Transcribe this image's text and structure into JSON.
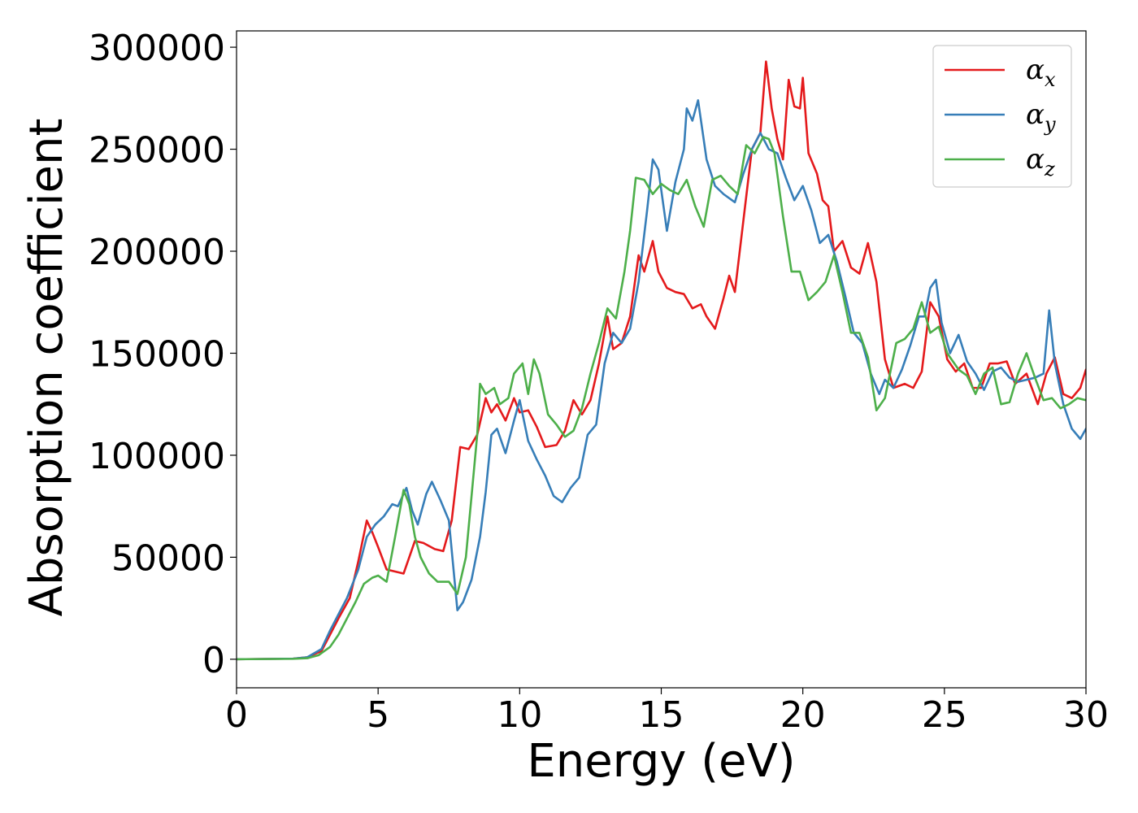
{
  "chart_data": {
    "type": "line",
    "xlabel": "Energy (eV)",
    "ylabel": "Absorption coefficient",
    "xlim": [
      0,
      30
    ],
    "ylim": [
      -14000,
      308000
    ],
    "x_ticks": [
      0,
      5,
      10,
      15,
      20,
      25,
      30
    ],
    "y_ticks": [
      0,
      50000,
      100000,
      150000,
      200000,
      250000,
      300000
    ],
    "x_tick_labels": [
      "0",
      "5",
      "10",
      "15",
      "20",
      "25",
      "30"
    ],
    "y_tick_labels": [
      "0",
      "50000",
      "100000",
      "150000",
      "200000",
      "250000",
      "300000"
    ],
    "grid": false,
    "legend_position": "top-right",
    "series": [
      {
        "name": "αx",
        "legend_symbol": "α",
        "legend_subscript": "x",
        "color": "#e41a1c",
        "points": [
          [
            0,
            0
          ],
          [
            2.0,
            300
          ],
          [
            2.5,
            1000
          ],
          [
            3.0,
            4000
          ],
          [
            3.3,
            12000
          ],
          [
            3.6,
            20000
          ],
          [
            4.0,
            30000
          ],
          [
            4.3,
            48000
          ],
          [
            4.6,
            68000
          ],
          [
            4.8,
            62000
          ],
          [
            5.0,
            55000
          ],
          [
            5.3,
            44000
          ],
          [
            5.6,
            43000
          ],
          [
            5.9,
            42000
          ],
          [
            6.1,
            50000
          ],
          [
            6.3,
            58000
          ],
          [
            6.6,
            57000
          ],
          [
            7.0,
            54000
          ],
          [
            7.3,
            53000
          ],
          [
            7.6,
            68000
          ],
          [
            7.9,
            104000
          ],
          [
            8.2,
            103000
          ],
          [
            8.5,
            110000
          ],
          [
            8.8,
            128000
          ],
          [
            9.0,
            121000
          ],
          [
            9.2,
            125000
          ],
          [
            9.5,
            117000
          ],
          [
            9.8,
            128000
          ],
          [
            10.0,
            121000
          ],
          [
            10.3,
            122000
          ],
          [
            10.6,
            114000
          ],
          [
            10.9,
            104000
          ],
          [
            11.3,
            105000
          ],
          [
            11.6,
            112000
          ],
          [
            11.9,
            127000
          ],
          [
            12.2,
            120000
          ],
          [
            12.5,
            127000
          ],
          [
            12.8,
            145000
          ],
          [
            13.1,
            168000
          ],
          [
            13.3,
            152000
          ],
          [
            13.6,
            155000
          ],
          [
            13.9,
            168000
          ],
          [
            14.2,
            198000
          ],
          [
            14.4,
            190000
          ],
          [
            14.7,
            205000
          ],
          [
            14.9,
            190000
          ],
          [
            15.2,
            182000
          ],
          [
            15.5,
            180000
          ],
          [
            15.8,
            179000
          ],
          [
            16.1,
            172000
          ],
          [
            16.4,
            174000
          ],
          [
            16.6,
            168000
          ],
          [
            16.9,
            162000
          ],
          [
            17.2,
            177000
          ],
          [
            17.4,
            188000
          ],
          [
            17.6,
            180000
          ],
          [
            17.9,
            215000
          ],
          [
            18.2,
            250000
          ],
          [
            18.5,
            258000
          ],
          [
            18.7,
            293000
          ],
          [
            18.9,
            270000
          ],
          [
            19.1,
            255000
          ],
          [
            19.3,
            245000
          ],
          [
            19.5,
            284000
          ],
          [
            19.7,
            271000
          ],
          [
            19.9,
            270000
          ],
          [
            20.0,
            285000
          ],
          [
            20.2,
            248000
          ],
          [
            20.5,
            238000
          ],
          [
            20.7,
            225000
          ],
          [
            20.9,
            222000
          ],
          [
            21.1,
            200000
          ],
          [
            21.4,
            205000
          ],
          [
            21.7,
            192000
          ],
          [
            22.0,
            189000
          ],
          [
            22.3,
            204000
          ],
          [
            22.6,
            185000
          ],
          [
            22.9,
            147000
          ],
          [
            23.2,
            133000
          ],
          [
            23.6,
            135000
          ],
          [
            23.9,
            133000
          ],
          [
            24.2,
            141000
          ],
          [
            24.5,
            175000
          ],
          [
            24.8,
            168000
          ],
          [
            25.1,
            147000
          ],
          [
            25.4,
            141000
          ],
          [
            25.7,
            145000
          ],
          [
            26.0,
            133000
          ],
          [
            26.3,
            133000
          ],
          [
            26.6,
            145000
          ],
          [
            26.9,
            145000
          ],
          [
            27.2,
            146000
          ],
          [
            27.5,
            135000
          ],
          [
            27.9,
            140000
          ],
          [
            28.3,
            125000
          ],
          [
            28.6,
            140000
          ],
          [
            28.9,
            148000
          ],
          [
            29.2,
            130000
          ],
          [
            29.5,
            128000
          ],
          [
            29.8,
            133000
          ],
          [
            30.0,
            142000
          ]
        ]
      },
      {
        "name": "αy",
        "legend_symbol": "α",
        "legend_subscript": "y",
        "color": "#377eb8",
        "points": [
          [
            0,
            0
          ],
          [
            2.0,
            300
          ],
          [
            2.5,
            1000
          ],
          [
            3.0,
            5000
          ],
          [
            3.3,
            14000
          ],
          [
            3.6,
            22000
          ],
          [
            3.9,
            30000
          ],
          [
            4.3,
            44000
          ],
          [
            4.6,
            60000
          ],
          [
            4.9,
            66000
          ],
          [
            5.2,
            70000
          ],
          [
            5.5,
            76000
          ],
          [
            5.7,
            75000
          ],
          [
            6.0,
            84000
          ],
          [
            6.2,
            73000
          ],
          [
            6.4,
            66000
          ],
          [
            6.7,
            81000
          ],
          [
            6.9,
            87000
          ],
          [
            7.2,
            78000
          ],
          [
            7.5,
            68000
          ],
          [
            7.8,
            24000
          ],
          [
            8.0,
            28000
          ],
          [
            8.3,
            39000
          ],
          [
            8.6,
            60000
          ],
          [
            8.8,
            82000
          ],
          [
            9.0,
            110000
          ],
          [
            9.2,
            113000
          ],
          [
            9.5,
            101000
          ],
          [
            9.8,
            117000
          ],
          [
            10.0,
            127000
          ],
          [
            10.3,
            107000
          ],
          [
            10.6,
            98000
          ],
          [
            10.9,
            90000
          ],
          [
            11.2,
            80000
          ],
          [
            11.5,
            77000
          ],
          [
            11.8,
            84000
          ],
          [
            12.1,
            89000
          ],
          [
            12.4,
            110000
          ],
          [
            12.7,
            115000
          ],
          [
            13.0,
            145000
          ],
          [
            13.3,
            160000
          ],
          [
            13.6,
            155000
          ],
          [
            13.9,
            162000
          ],
          [
            14.2,
            185000
          ],
          [
            14.5,
            220000
          ],
          [
            14.7,
            245000
          ],
          [
            14.9,
            240000
          ],
          [
            15.2,
            210000
          ],
          [
            15.5,
            234000
          ],
          [
            15.8,
            250000
          ],
          [
            15.9,
            270000
          ],
          [
            16.1,
            264000
          ],
          [
            16.3,
            274000
          ],
          [
            16.6,
            245000
          ],
          [
            16.9,
            232000
          ],
          [
            17.2,
            228000
          ],
          [
            17.6,
            224000
          ],
          [
            17.9,
            238000
          ],
          [
            18.2,
            250000
          ],
          [
            18.5,
            258000
          ],
          [
            18.8,
            250000
          ],
          [
            19.1,
            248000
          ],
          [
            19.4,
            236000
          ],
          [
            19.7,
            225000
          ],
          [
            20.0,
            232000
          ],
          [
            20.3,
            220000
          ],
          [
            20.6,
            204000
          ],
          [
            20.9,
            208000
          ],
          [
            21.2,
            195000
          ],
          [
            21.5,
            178000
          ],
          [
            21.8,
            160000
          ],
          [
            22.1,
            155000
          ],
          [
            22.4,
            140000
          ],
          [
            22.7,
            130000
          ],
          [
            22.9,
            137000
          ],
          [
            23.2,
            133000
          ],
          [
            23.5,
            142000
          ],
          [
            23.8,
            154000
          ],
          [
            24.1,
            168000
          ],
          [
            24.3,
            168000
          ],
          [
            24.5,
            182000
          ],
          [
            24.7,
            186000
          ],
          [
            24.9,
            165000
          ],
          [
            25.2,
            150000
          ],
          [
            25.5,
            159000
          ],
          [
            25.8,
            146000
          ],
          [
            26.1,
            140000
          ],
          [
            26.4,
            132000
          ],
          [
            26.7,
            141000
          ],
          [
            27.0,
            143000
          ],
          [
            27.3,
            138000
          ],
          [
            27.6,
            136000
          ],
          [
            27.9,
            137000
          ],
          [
            28.2,
            138000
          ],
          [
            28.5,
            140000
          ],
          [
            28.7,
            171000
          ],
          [
            28.9,
            145000
          ],
          [
            29.2,
            125000
          ],
          [
            29.5,
            113000
          ],
          [
            29.8,
            108000
          ],
          [
            30.0,
            113000
          ]
        ]
      },
      {
        "name": "αz",
        "legend_symbol": "α",
        "legend_subscript": "z",
        "color": "#4daf4a",
        "points": [
          [
            0,
            0
          ],
          [
            2.0,
            200
          ],
          [
            2.5,
            500
          ],
          [
            2.9,
            2000
          ],
          [
            3.3,
            6000
          ],
          [
            3.6,
            12000
          ],
          [
            3.9,
            20000
          ],
          [
            4.2,
            28000
          ],
          [
            4.5,
            37000
          ],
          [
            4.8,
            40000
          ],
          [
            5.0,
            41000
          ],
          [
            5.3,
            38000
          ],
          [
            5.6,
            60000
          ],
          [
            5.9,
            83000
          ],
          [
            6.1,
            76000
          ],
          [
            6.3,
            60000
          ],
          [
            6.5,
            50000
          ],
          [
            6.8,
            42000
          ],
          [
            7.1,
            38000
          ],
          [
            7.5,
            38000
          ],
          [
            7.8,
            32000
          ],
          [
            8.1,
            50000
          ],
          [
            8.3,
            80000
          ],
          [
            8.5,
            110000
          ],
          [
            8.6,
            135000
          ],
          [
            8.8,
            130000
          ],
          [
            9.1,
            133000
          ],
          [
            9.3,
            125000
          ],
          [
            9.6,
            128000
          ],
          [
            9.8,
            140000
          ],
          [
            10.1,
            145000
          ],
          [
            10.3,
            130000
          ],
          [
            10.5,
            147000
          ],
          [
            10.7,
            140000
          ],
          [
            11.0,
            120000
          ],
          [
            11.3,
            115000
          ],
          [
            11.6,
            109000
          ],
          [
            11.9,
            112000
          ],
          [
            12.2,
            123000
          ],
          [
            12.5,
            140000
          ],
          [
            12.8,
            155000
          ],
          [
            13.1,
            172000
          ],
          [
            13.4,
            167000
          ],
          [
            13.7,
            190000
          ],
          [
            13.9,
            210000
          ],
          [
            14.1,
            236000
          ],
          [
            14.4,
            235000
          ],
          [
            14.7,
            228000
          ],
          [
            15.0,
            233000
          ],
          [
            15.3,
            230000
          ],
          [
            15.6,
            228000
          ],
          [
            15.9,
            235000
          ],
          [
            16.2,
            222000
          ],
          [
            16.5,
            212000
          ],
          [
            16.8,
            235000
          ],
          [
            17.1,
            237000
          ],
          [
            17.4,
            232000
          ],
          [
            17.7,
            228000
          ],
          [
            18.0,
            252000
          ],
          [
            18.3,
            248000
          ],
          [
            18.6,
            256000
          ],
          [
            18.8,
            255000
          ],
          [
            19.0,
            248000
          ],
          [
            19.3,
            217000
          ],
          [
            19.6,
            190000
          ],
          [
            19.9,
            190000
          ],
          [
            20.2,
            176000
          ],
          [
            20.5,
            180000
          ],
          [
            20.8,
            185000
          ],
          [
            21.1,
            198000
          ],
          [
            21.4,
            180000
          ],
          [
            21.7,
            160000
          ],
          [
            22.0,
            160000
          ],
          [
            22.3,
            148000
          ],
          [
            22.6,
            122000
          ],
          [
            22.9,
            128000
          ],
          [
            23.3,
            155000
          ],
          [
            23.6,
            157000
          ],
          [
            23.9,
            162000
          ],
          [
            24.2,
            175000
          ],
          [
            24.5,
            160000
          ],
          [
            24.8,
            163000
          ],
          [
            25.1,
            150000
          ],
          [
            25.5,
            142000
          ],
          [
            25.8,
            139000
          ],
          [
            26.1,
            130000
          ],
          [
            26.4,
            140000
          ],
          [
            26.7,
            143000
          ],
          [
            27.0,
            125000
          ],
          [
            27.3,
            126000
          ],
          [
            27.6,
            140000
          ],
          [
            27.9,
            150000
          ],
          [
            28.2,
            138000
          ],
          [
            28.5,
            127000
          ],
          [
            28.8,
            128000
          ],
          [
            29.1,
            123000
          ],
          [
            29.4,
            125000
          ],
          [
            29.7,
            128000
          ],
          [
            30.0,
            127000
          ]
        ]
      }
    ]
  }
}
